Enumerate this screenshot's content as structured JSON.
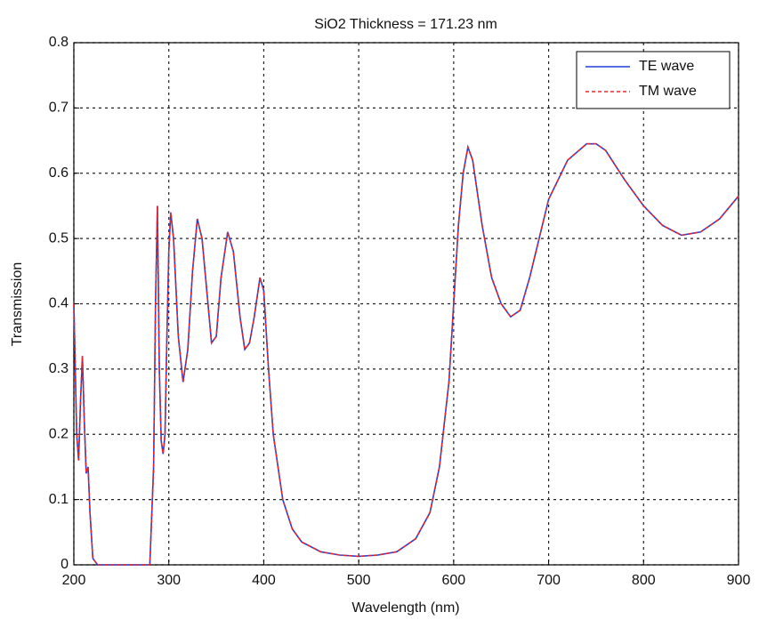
{
  "chart_data": {
    "type": "line",
    "title": "SiO2 Thickness = 171.23 nm",
    "x_label": "Wavelength (nm)",
    "y_label": "Transmission",
    "x": [
      200,
      203,
      205,
      207,
      209,
      211,
      213,
      215,
      217,
      220,
      225,
      280,
      284,
      286,
      288,
      290,
      292,
      294,
      296,
      298,
      300,
      302,
      305,
      310,
      315,
      320,
      325,
      330,
      335,
      340,
      345,
      350,
      355,
      362,
      368,
      375,
      380,
      385,
      390,
      396,
      400,
      405,
      410,
      420,
      430,
      440,
      460,
      480,
      500,
      520,
      540,
      560,
      575,
      585,
      595,
      600,
      605,
      610,
      615,
      620,
      630,
      640,
      650,
      660,
      670,
      680,
      690,
      700,
      720,
      740,
      750,
      760,
      780,
      800,
      820,
      840,
      860,
      880,
      900
    ],
    "series": [
      {
        "name": "TE wave",
        "color": "#1f3fd8",
        "line_style": "solid",
        "values": [
          0.4,
          0.2,
          0.16,
          0.25,
          0.32,
          0.22,
          0.14,
          0.15,
          0.08,
          0.01,
          0.0,
          0.0,
          0.15,
          0.4,
          0.55,
          0.3,
          0.19,
          0.17,
          0.2,
          0.35,
          0.48,
          0.54,
          0.5,
          0.35,
          0.28,
          0.33,
          0.45,
          0.53,
          0.5,
          0.42,
          0.34,
          0.35,
          0.44,
          0.51,
          0.48,
          0.38,
          0.33,
          0.34,
          0.38,
          0.44,
          0.42,
          0.3,
          0.2,
          0.1,
          0.055,
          0.035,
          0.02,
          0.015,
          0.013,
          0.015,
          0.02,
          0.04,
          0.08,
          0.15,
          0.28,
          0.4,
          0.52,
          0.6,
          0.64,
          0.62,
          0.52,
          0.44,
          0.4,
          0.38,
          0.39,
          0.44,
          0.5,
          0.56,
          0.62,
          0.645,
          0.645,
          0.635,
          0.59,
          0.55,
          0.52,
          0.505,
          0.51,
          0.53,
          0.565
        ]
      },
      {
        "name": "TM wave",
        "color": "#e8262a",
        "line_style": "dashed",
        "values": [
          0.4,
          0.2,
          0.16,
          0.25,
          0.32,
          0.22,
          0.14,
          0.15,
          0.08,
          0.01,
          0.0,
          0.0,
          0.15,
          0.4,
          0.55,
          0.3,
          0.19,
          0.17,
          0.2,
          0.35,
          0.48,
          0.54,
          0.5,
          0.35,
          0.28,
          0.33,
          0.45,
          0.53,
          0.5,
          0.42,
          0.34,
          0.35,
          0.44,
          0.51,
          0.48,
          0.38,
          0.33,
          0.34,
          0.38,
          0.44,
          0.42,
          0.3,
          0.2,
          0.1,
          0.055,
          0.035,
          0.02,
          0.015,
          0.013,
          0.015,
          0.02,
          0.04,
          0.08,
          0.15,
          0.28,
          0.4,
          0.52,
          0.6,
          0.64,
          0.62,
          0.52,
          0.44,
          0.4,
          0.38,
          0.39,
          0.44,
          0.5,
          0.56,
          0.62,
          0.645,
          0.645,
          0.635,
          0.59,
          0.55,
          0.52,
          0.505,
          0.51,
          0.53,
          0.565
        ]
      }
    ],
    "xlim": [
      200,
      900
    ],
    "xticks": [
      200,
      300,
      400,
      500,
      600,
      700,
      800,
      900
    ],
    "ylim": [
      0,
      0.8
    ],
    "yticks": [
      0,
      0.1,
      0.2,
      0.3,
      0.4,
      0.5,
      0.6,
      0.7,
      0.8
    ],
    "grid": true,
    "legend": "upper right"
  }
}
